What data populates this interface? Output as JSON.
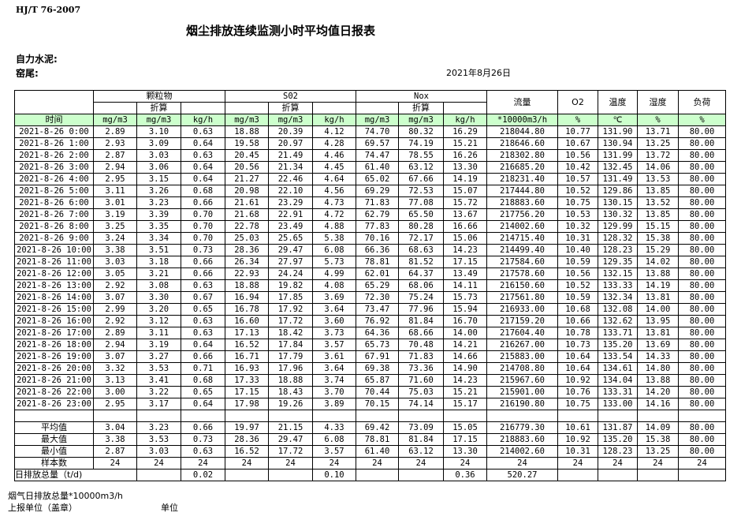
{
  "header": {
    "standard": "HJ/T  76-2007",
    "title": "烟尘排放连续监测小时平均值日报表",
    "company": "自力水泥:",
    "kiln": "窑尾:",
    "date": "2021年8月26日"
  },
  "table": {
    "group_headers": {
      "particulate": "颗粒物",
      "so2": "S02",
      "nox": "Nox",
      "flow": "流量",
      "o2": "O2",
      "temp": "温度",
      "humidity": "湿度",
      "load": "负荷"
    },
    "converted_label": "折算",
    "time_label": "时间",
    "units": [
      "mg/m3",
      "mg/m3",
      "kg/h",
      "mg/m3",
      "mg/m3",
      "kg/h",
      "mg/m3",
      "mg/m3",
      "kg/h",
      "*10000m3/h",
      "%",
      "℃",
      "%",
      "%"
    ],
    "rows": [
      [
        "2021-8-26 0:00",
        "2.89",
        "3.10",
        "0.63",
        "18.88",
        "20.39",
        "4.12",
        "74.70",
        "80.32",
        "16.29",
        "218044.80",
        "10.77",
        "131.90",
        "13.71",
        "80.00"
      ],
      [
        "2021-8-26 1:00",
        "2.93",
        "3.09",
        "0.64",
        "19.58",
        "20.97",
        "4.28",
        "69.57",
        "74.19",
        "15.21",
        "218646.60",
        "10.67",
        "130.94",
        "13.25",
        "80.00"
      ],
      [
        "2021-8-26 2:00",
        "2.87",
        "3.03",
        "0.63",
        "20.45",
        "21.49",
        "4.46",
        "74.47",
        "78.55",
        "16.26",
        "218302.80",
        "10.56",
        "131.99",
        "13.72",
        "80.00"
      ],
      [
        "2021-8-26 3:00",
        "2.94",
        "3.06",
        "0.64",
        "20.56",
        "21.34",
        "4.45",
        "61.40",
        "63.12",
        "13.30",
        "216685.20",
        "10.42",
        "132.45",
        "14.06",
        "80.00"
      ],
      [
        "2021-8-26 4:00",
        "2.95",
        "3.15",
        "0.64",
        "21.27",
        "22.46",
        "4.64",
        "65.02",
        "67.66",
        "14.19",
        "218231.40",
        "10.57",
        "131.49",
        "13.53",
        "80.00"
      ],
      [
        "2021-8-26 5:00",
        "3.11",
        "3.26",
        "0.68",
        "20.98",
        "22.10",
        "4.56",
        "69.29",
        "72.53",
        "15.07",
        "217444.80",
        "10.52",
        "129.86",
        "13.85",
        "80.00"
      ],
      [
        "2021-8-26 6:00",
        "3.01",
        "3.23",
        "0.66",
        "21.61",
        "23.29",
        "4.73",
        "71.83",
        "77.08",
        "15.72",
        "218883.60",
        "10.75",
        "130.15",
        "13.52",
        "80.00"
      ],
      [
        "2021-8-26 7:00",
        "3.19",
        "3.39",
        "0.70",
        "21.68",
        "22.91",
        "4.72",
        "62.79",
        "65.50",
        "13.67",
        "217756.20",
        "10.53",
        "130.32",
        "13.85",
        "80.00"
      ],
      [
        "2021-8-26 8:00",
        "3.25",
        "3.35",
        "0.70",
        "22.78",
        "23.49",
        "4.88",
        "77.83",
        "80.28",
        "16.66",
        "214002.60",
        "10.32",
        "129.99",
        "15.15",
        "80.00"
      ],
      [
        "2021-8-26 9:00",
        "3.24",
        "3.34",
        "0.70",
        "25.03",
        "25.65",
        "5.38",
        "70.16",
        "72.17",
        "15.06",
        "214715.40",
        "10.31",
        "128.32",
        "15.38",
        "80.00"
      ],
      [
        "2021-8-26 10:00",
        "3.38",
        "3.51",
        "0.73",
        "28.36",
        "29.47",
        "6.08",
        "66.36",
        "68.63",
        "14.23",
        "214499.40",
        "10.40",
        "128.23",
        "15.29",
        "80.00"
      ],
      [
        "2021-8-26 11:00",
        "3.03",
        "3.18",
        "0.66",
        "26.34",
        "27.97",
        "5.73",
        "78.81",
        "81.52",
        "17.15",
        "217584.60",
        "10.59",
        "129.35",
        "14.02",
        "80.00"
      ],
      [
        "2021-8-26 12:00",
        "3.05",
        "3.21",
        "0.66",
        "22.93",
        "24.24",
        "4.99",
        "62.01",
        "64.37",
        "13.49",
        "217578.60",
        "10.56",
        "132.15",
        "13.88",
        "80.00"
      ],
      [
        "2021-8-26 13:00",
        "2.92",
        "3.08",
        "0.63",
        "18.88",
        "19.82",
        "4.08",
        "65.29",
        "68.06",
        "14.11",
        "216150.60",
        "10.52",
        "133.33",
        "14.19",
        "80.00"
      ],
      [
        "2021-8-26 14:00",
        "3.07",
        "3.30",
        "0.67",
        "16.94",
        "17.85",
        "3.69",
        "72.30",
        "75.24",
        "15.73",
        "217561.80",
        "10.59",
        "132.34",
        "13.81",
        "80.00"
      ],
      [
        "2021-8-26 15:00",
        "2.99",
        "3.20",
        "0.65",
        "16.78",
        "17.92",
        "3.64",
        "73.47",
        "77.96",
        "15.94",
        "216933.00",
        "10.68",
        "132.08",
        "14.00",
        "80.00"
      ],
      [
        "2021-8-26 16:00",
        "2.92",
        "3.12",
        "0.63",
        "16.60",
        "17.72",
        "3.60",
        "76.92",
        "81.84",
        "16.70",
        "217159.20",
        "10.66",
        "132.62",
        "13.95",
        "80.00"
      ],
      [
        "2021-8-26 17:00",
        "2.89",
        "3.11",
        "0.63",
        "17.13",
        "18.42",
        "3.73",
        "64.36",
        "68.66",
        "14.00",
        "217604.40",
        "10.78",
        "133.71",
        "13.81",
        "80.00"
      ],
      [
        "2021-8-26 18:00",
        "2.94",
        "3.19",
        "0.64",
        "16.52",
        "17.84",
        "3.57",
        "65.73",
        "70.48",
        "14.21",
        "216267.00",
        "10.73",
        "135.20",
        "13.69",
        "80.00"
      ],
      [
        "2021-8-26 19:00",
        "3.07",
        "3.27",
        "0.66",
        "16.71",
        "17.79",
        "3.61",
        "67.91",
        "71.83",
        "14.66",
        "215883.00",
        "10.64",
        "133.54",
        "14.33",
        "80.00"
      ],
      [
        "2021-8-26 20:00",
        "3.32",
        "3.53",
        "0.71",
        "16.93",
        "17.96",
        "3.64",
        "69.38",
        "73.36",
        "14.90",
        "214708.80",
        "10.64",
        "134.61",
        "14.80",
        "80.00"
      ],
      [
        "2021-8-26 21:00",
        "3.13",
        "3.41",
        "0.68",
        "17.33",
        "18.88",
        "3.74",
        "65.87",
        "71.60",
        "14.23",
        "215967.60",
        "10.92",
        "134.04",
        "13.88",
        "80.00"
      ],
      [
        "2021-8-26 22:00",
        "3.00",
        "3.22",
        "0.65",
        "17.15",
        "18.43",
        "3.70",
        "70.44",
        "75.03",
        "15.21",
        "215901.00",
        "10.76",
        "133.31",
        "14.20",
        "80.00"
      ],
      [
        "2021-8-26 23:00",
        "2.95",
        "3.17",
        "0.64",
        "17.98",
        "19.26",
        "3.89",
        "70.15",
        "74.14",
        "15.17",
        "216190.80",
        "10.75",
        "133.00",
        "14.16",
        "80.00"
      ]
    ],
    "summary": [
      [
        "平均值",
        "3.04",
        "3.23",
        "0.66",
        "19.97",
        "21.15",
        "4.33",
        "69.42",
        "73.09",
        "15.05",
        "216779.30",
        "10.61",
        "131.87",
        "14.09",
        "80.00"
      ],
      [
        "最大值",
        "3.38",
        "3.53",
        "0.73",
        "28.36",
        "29.47",
        "6.08",
        "78.81",
        "81.84",
        "17.15",
        "218883.60",
        "10.92",
        "135.20",
        "15.38",
        "80.00"
      ],
      [
        "最小值",
        "2.87",
        "3.03",
        "0.63",
        "16.52",
        "17.72",
        "3.57",
        "61.40",
        "63.12",
        "13.30",
        "214002.60",
        "10.31",
        "128.23",
        "13.25",
        "80.00"
      ],
      [
        "样本数",
        "24",
        "24",
        "24",
        "24",
        "24",
        "24",
        "24",
        "24",
        "24",
        "24",
        "24",
        "24",
        "24",
        "24"
      ]
    ],
    "daily_total": {
      "label": "日排放总量（t/d)",
      "values": [
        "",
        "0.02",
        "",
        "",
        "0.10",
        "",
        "",
        "0.36",
        "520.27",
        "",
        "",
        "",
        ""
      ]
    }
  },
  "footer": {
    "flue_gas_total": "烟气日排放总量*10000m3/h",
    "reporting_unit": "上报单位（盖章）",
    "unit": "单位"
  },
  "colors": {
    "header_bg": "#ccffcc",
    "border": "#000000"
  }
}
